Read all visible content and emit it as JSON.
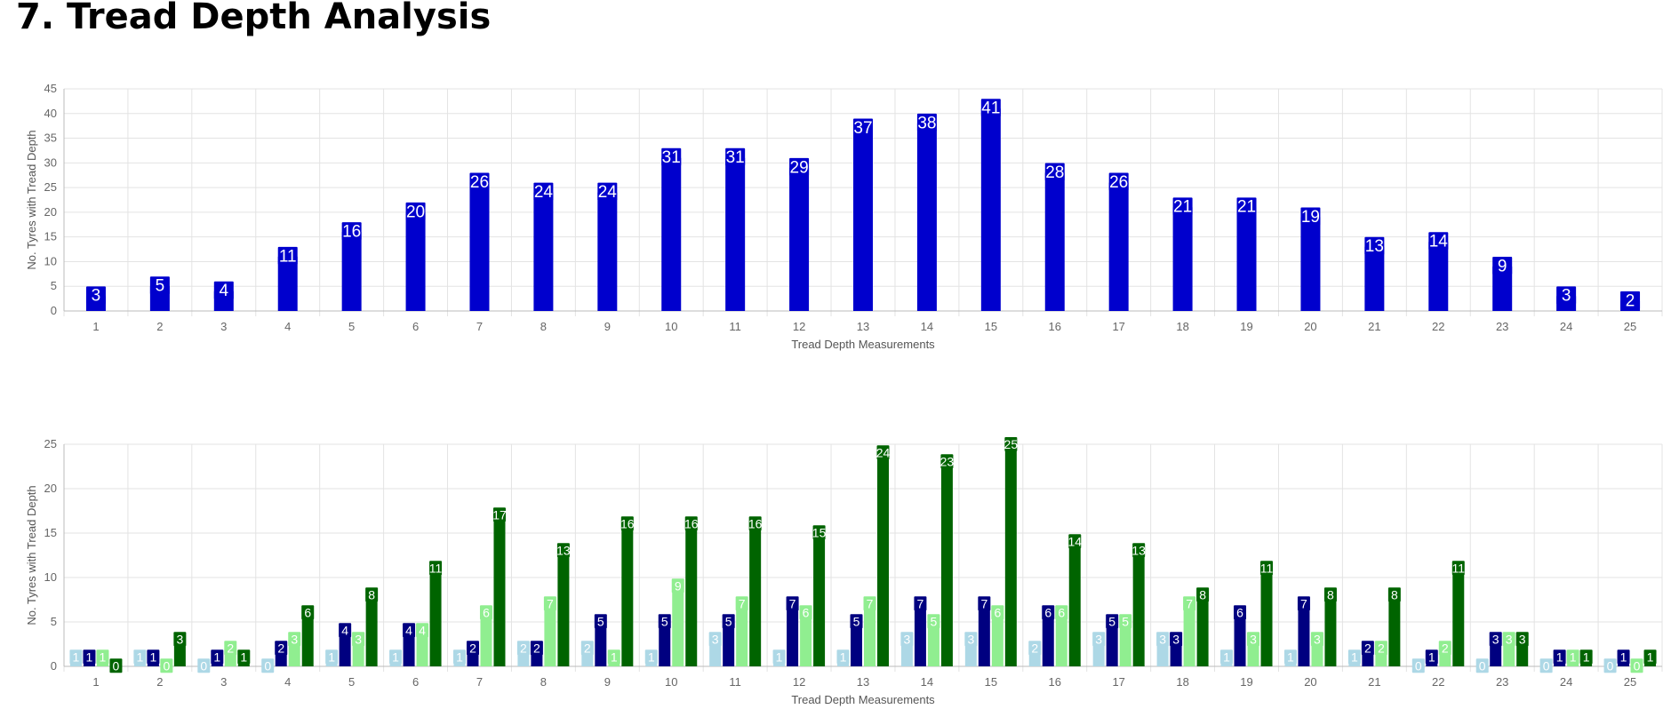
{
  "page": {
    "title": "7.  Tread Depth Analysis"
  },
  "chart_data": [
    {
      "type": "bar",
      "categories": [
        "1",
        "2",
        "3",
        "4",
        "5",
        "6",
        "7",
        "8",
        "9",
        "10",
        "11",
        "12",
        "13",
        "14",
        "15",
        "16",
        "17",
        "18",
        "19",
        "20",
        "21",
        "22",
        "23",
        "24",
        "25"
      ],
      "series": [
        {
          "color": "#0000cd",
          "values": [
            3,
            5,
            4,
            11,
            16,
            20,
            26,
            24,
            24,
            31,
            31,
            29,
            37,
            38,
            41,
            28,
            26,
            21,
            21,
            19,
            13,
            14,
            9,
            3,
            2
          ]
        }
      ],
      "ylabel": "No. Tyres with Tread Depth",
      "xlabel": "Tread Depth Measurements",
      "ylim": [
        0,
        45
      ],
      "yticks": [
        0,
        5,
        10,
        15,
        20,
        25,
        30,
        35,
        40,
        45
      ],
      "grid": true,
      "data_labels": true
    },
    {
      "type": "bar",
      "categories": [
        "1",
        "2",
        "3",
        "4",
        "5",
        "6",
        "7",
        "8",
        "9",
        "10",
        "11",
        "12",
        "13",
        "14",
        "15",
        "16",
        "17",
        "18",
        "19",
        "20",
        "21",
        "22",
        "23",
        "24",
        "25"
      ],
      "series": [
        {
          "color": "#add8e6",
          "values": [
            1,
            1,
            0,
            0,
            1,
            1,
            1,
            2,
            2,
            1,
            3,
            1,
            1,
            3,
            3,
            2,
            3,
            3,
            1,
            1,
            1,
            0,
            0,
            0,
            0
          ]
        },
        {
          "color": "#000080",
          "values": [
            1,
            1,
            1,
            2,
            4,
            4,
            2,
            2,
            5,
            5,
            5,
            7,
            5,
            7,
            7,
            6,
            5,
            3,
            6,
            7,
            2,
            1,
            3,
            1,
            1
          ]
        },
        {
          "color": "#90ee90",
          "values": [
            1,
            0,
            2,
            3,
            3,
            4,
            6,
            7,
            1,
            9,
            7,
            6,
            7,
            5,
            6,
            6,
            5,
            7,
            3,
            3,
            2,
            2,
            3,
            1,
            0
          ]
        },
        {
          "color": "#006400",
          "values": [
            0,
            3,
            1,
            6,
            8,
            11,
            17,
            13,
            16,
            16,
            16,
            15,
            24,
            23,
            25,
            14,
            13,
            8,
            11,
            8,
            8,
            11,
            3,
            1,
            1
          ]
        }
      ],
      "ylabel": "No. Tyres with Tread Depth",
      "xlabel": "Tread Depth Measurements",
      "ylim": [
        0,
        25
      ],
      "yticks": [
        0,
        5,
        10,
        15,
        20,
        25
      ],
      "grid": true,
      "data_labels": true
    }
  ]
}
